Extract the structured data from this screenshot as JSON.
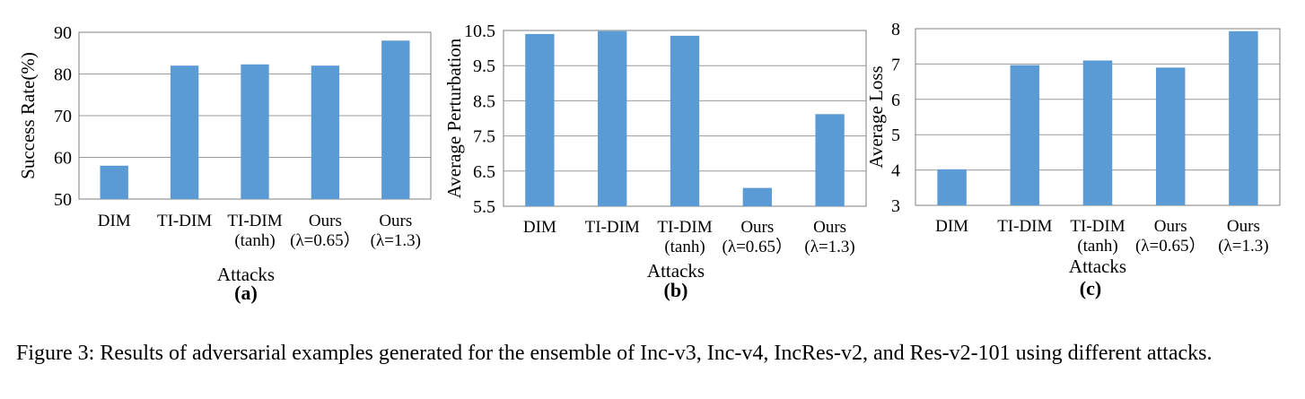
{
  "bar_color": "#5b9bd5",
  "chart_data": [
    {
      "type": "bar",
      "panel_label": "(a)",
      "xlabel": "Attacks",
      "ylabel": "Success Rate(%)",
      "ylim": [
        50,
        90
      ],
      "yticks": [
        "50",
        "60",
        "70",
        "80",
        "90"
      ],
      "categories": [
        [
          "DIM"
        ],
        [
          "TI-DIM"
        ],
        [
          "TI-DIM",
          "(tanh)"
        ],
        [
          "Ours",
          "(λ=0.65）"
        ],
        [
          "Ours",
          "(λ=1.3)"
        ]
      ],
      "values": [
        58,
        82,
        82.3,
        82,
        88
      ]
    },
    {
      "type": "bar",
      "panel_label": "(b)",
      "xlabel": "Attacks",
      "ylabel": "Average Perturbation",
      "ylim": [
        5.5,
        10.5
      ],
      "yticks": [
        "5.5",
        "6.5",
        "7.5",
        "8.5",
        "9.5",
        "10.5"
      ],
      "categories": [
        [
          "DIM"
        ],
        [
          "TI-DIM"
        ],
        [
          "TI-DIM",
          "(tanh)"
        ],
        [
          "Ours",
          "(λ=0.65）"
        ],
        [
          "Ours",
          "(λ=1.3)"
        ]
      ],
      "values": [
        10.4,
        10.48,
        10.35,
        6.02,
        8.12
      ]
    },
    {
      "type": "bar",
      "panel_label": "(c)",
      "xlabel": "Attacks",
      "ylabel": "Average Loss",
      "ylim": [
        3,
        8
      ],
      "yticks": [
        "3",
        "4",
        "5",
        "6",
        "7",
        "8"
      ],
      "categories": [
        [
          "DIM"
        ],
        [
          "TI-DIM"
        ],
        [
          "TI-DIM",
          "(tanh)"
        ],
        [
          "Ours",
          "(λ=0.65）"
        ],
        [
          "Ours",
          "(λ=1.3)"
        ]
      ],
      "values": [
        4.02,
        6.97,
        7.1,
        6.9,
        7.93
      ]
    }
  ],
  "caption": "Figure 3: Results of adversarial examples generated for the ensemble of Inc-v3, Inc-v4, IncRes-v2, and Res-v2-101 using different attacks."
}
